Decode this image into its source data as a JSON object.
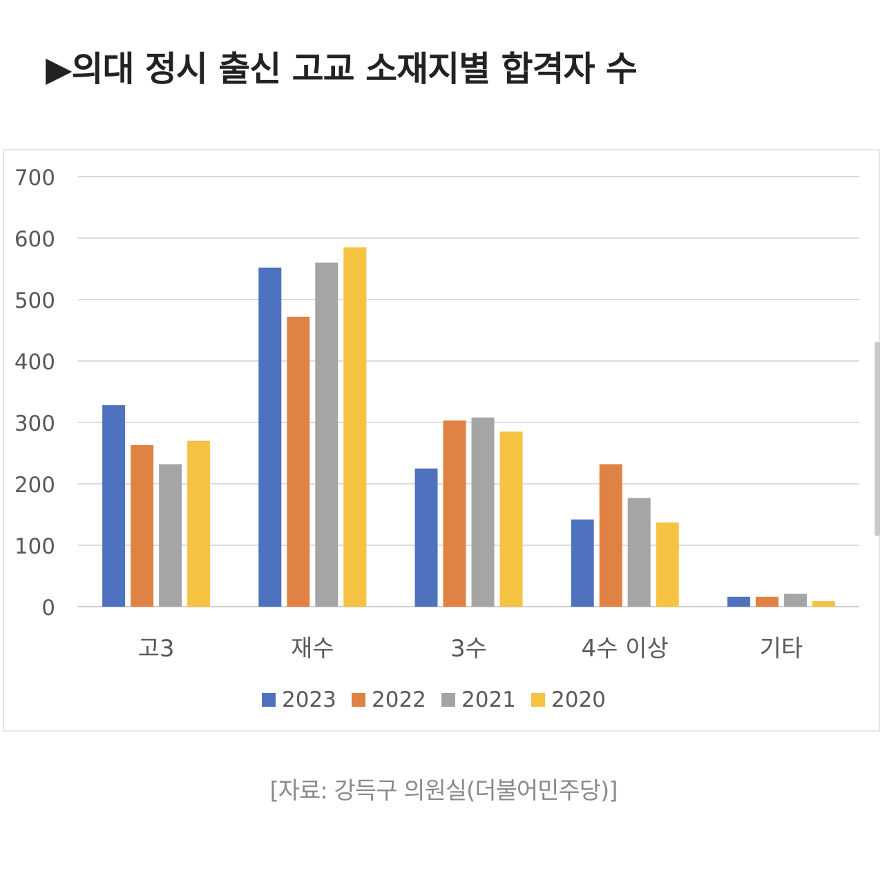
{
  "title": "▶의대 정시 출신 고교 소재지별 합격자 수",
  "source": "[자료: 강득구 의원실(더불어민주당)]",
  "colors": {
    "2023": "#4f72be",
    "2022": "#df8244",
    "2021": "#a5a5a5",
    "2020": "#f5c242"
  },
  "chart_data": {
    "type": "bar",
    "categories": [
      "고3",
      "재수",
      "3수",
      "4수 이상",
      "기타"
    ],
    "series": [
      {
        "name": "2023",
        "values": [
          328,
          552,
          225,
          142,
          16
        ]
      },
      {
        "name": "2022",
        "values": [
          263,
          472,
          303,
          232,
          16
        ]
      },
      {
        "name": "2021",
        "values": [
          232,
          560,
          308,
          177,
          21
        ]
      },
      {
        "name": "2020",
        "values": [
          270,
          585,
          285,
          137,
          9
        ]
      }
    ],
    "yticks": [
      "0",
      "100",
      "200",
      "300",
      "400",
      "500",
      "600",
      "700"
    ],
    "ylim": [
      0,
      700
    ],
    "grid": true,
    "legend": "bottom"
  }
}
